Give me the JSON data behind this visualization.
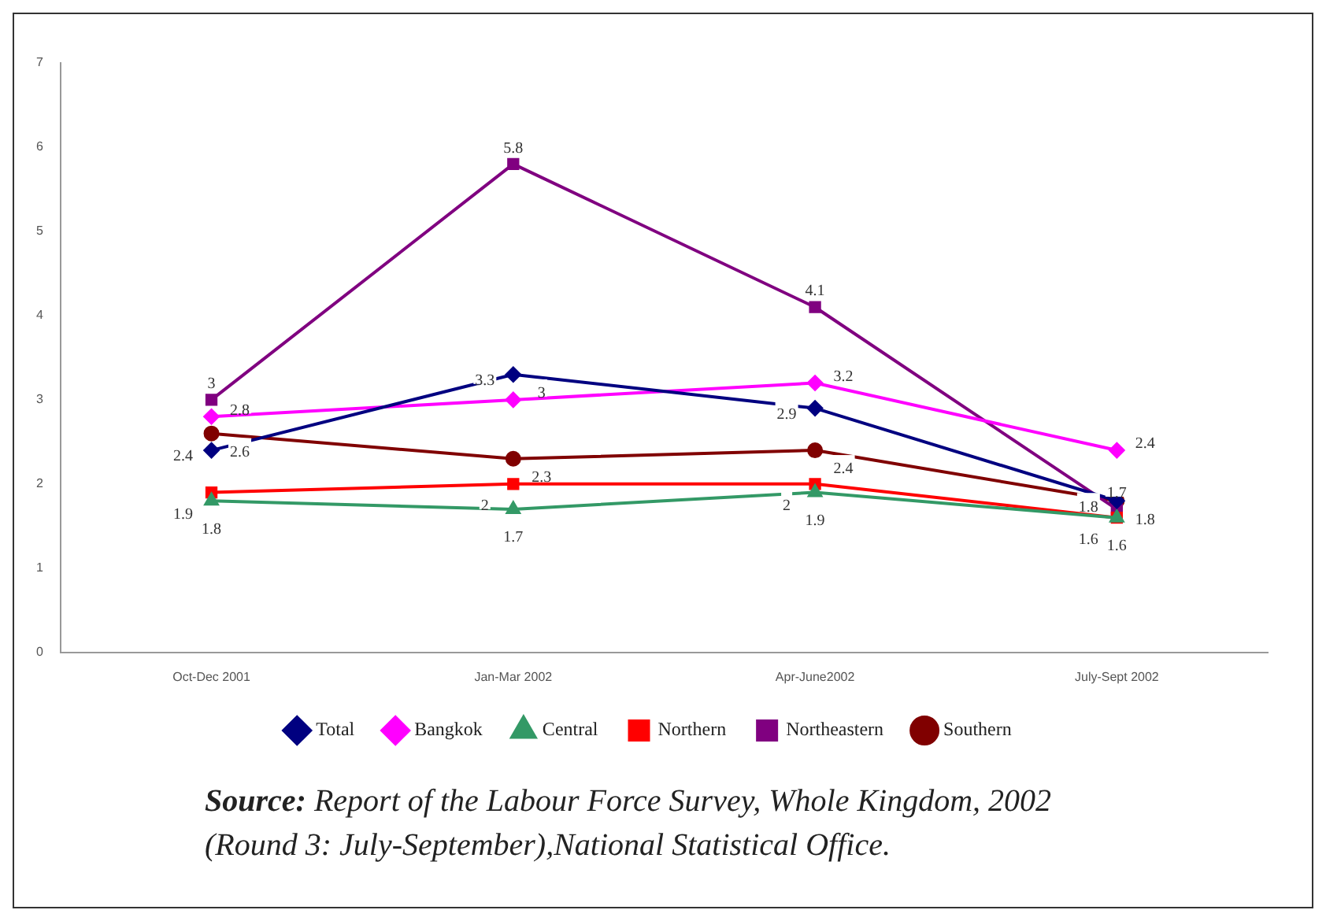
{
  "chart_data": {
    "type": "line",
    "categories": [
      "Oct-Dec 2001",
      "Jan-Mar 2002",
      "Apr-June2002",
      "July-Sept 2002"
    ],
    "series": [
      {
        "name": "Total",
        "color": "#000080",
        "marker": "diamond",
        "values": [
          2.4,
          3.3,
          2.9,
          1.8
        ]
      },
      {
        "name": "Bangkok",
        "color": "#ff00ff",
        "marker": "diamond",
        "values": [
          2.8,
          3,
          3.2,
          2.4
        ]
      },
      {
        "name": "Central",
        "color": "#339966",
        "marker": "triangle",
        "values": [
          1.8,
          1.7,
          1.9,
          1.6
        ]
      },
      {
        "name": "Northern",
        "color": "#ff0000",
        "marker": "square",
        "values": [
          1.9,
          2,
          2,
          1.6
        ]
      },
      {
        "name": "Northeastern",
        "color": "#800080",
        "marker": "square",
        "values": [
          3,
          5.8,
          4.1,
          1.7
        ]
      },
      {
        "name": "Southern",
        "color": "#800000",
        "marker": "circle",
        "values": [
          2.6,
          2.3,
          2.4,
          1.8
        ]
      }
    ],
    "ylim": [
      0,
      7
    ],
    "yticks": [
      0,
      1,
      2,
      3,
      4,
      5,
      6,
      7
    ],
    "grid": false,
    "legend": "bottom",
    "data_labels": true,
    "annotations": [
      "Source: Report of the Labour Force Survey, Whole Kingdom, 2002 (Round 3: July-September),National Statistical Office."
    ]
  }
}
